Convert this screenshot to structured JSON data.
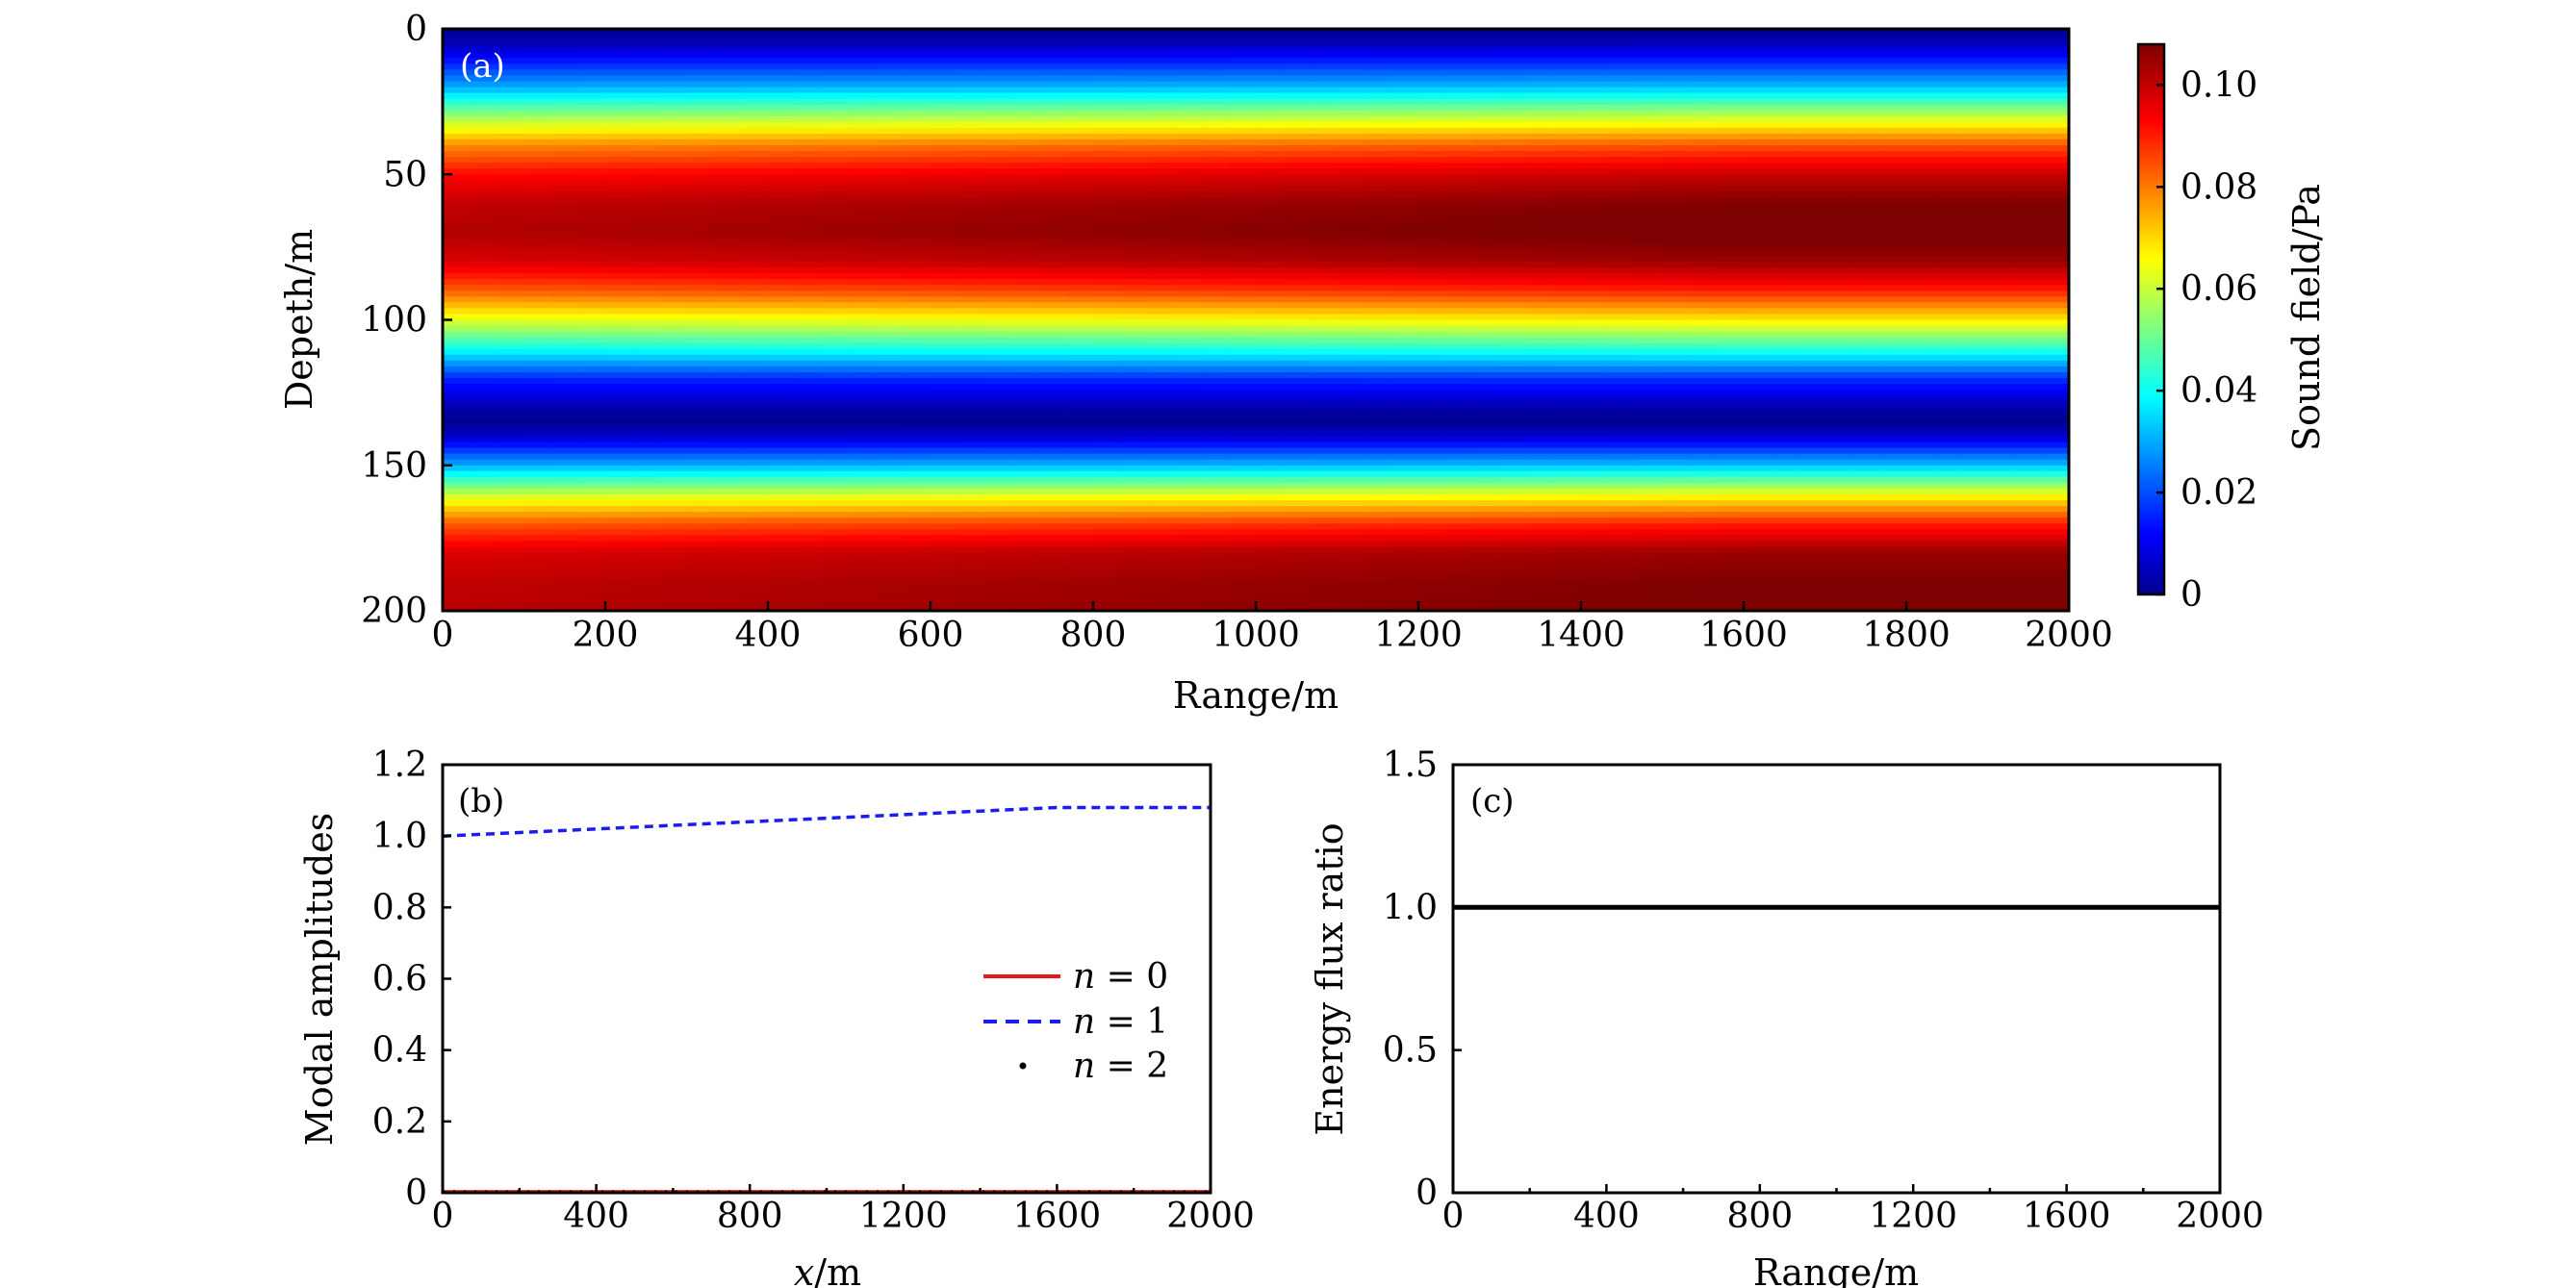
{
  "chart_data": [
    {
      "id": "a",
      "panel_label": "(a)",
      "type": "heatmap",
      "xlabel": "Range/m",
      "ylabel": "Depeth/m",
      "xlim": [
        0,
        2000
      ],
      "ylim": [
        0,
        200
      ],
      "y_inverted": true,
      "xticks": [
        0,
        200,
        400,
        600,
        800,
        1000,
        1200,
        1400,
        1600,
        1800,
        2000
      ],
      "yticks": [
        0,
        50,
        100,
        150,
        200
      ],
      "colorbar": {
        "label": "Sound field/Pa",
        "range": [
          0,
          0.108
        ],
        "ticks": [
          0,
          0.02,
          0.04,
          0.06,
          0.08,
          0.1
        ],
        "tick_labels": [
          "0",
          "0.02",
          "0.04",
          "0.06",
          "0.08",
          "0.10"
        ],
        "colormap": "jet"
      },
      "field_profile": {
        "depth": [
          0,
          5,
          10,
          20,
          30,
          40,
          50,
          60,
          70,
          80,
          90,
          100,
          110,
          120,
          130,
          135,
          140,
          150,
          160,
          170,
          180,
          190,
          200
        ],
        "value_at_range_0": [
          0.0,
          0.004,
          0.012,
          0.03,
          0.055,
          0.078,
          0.092,
          0.1,
          0.102,
          0.097,
          0.083,
          0.063,
          0.04,
          0.016,
          0.003,
          0.0,
          0.006,
          0.03,
          0.06,
          0.083,
          0.097,
          0.1,
          0.101
        ],
        "amplitude_gain_at_range": {
          "range": [
            0,
            1600,
            2000
          ],
          "gain": [
            1.0,
            1.08,
            1.08
          ]
        }
      }
    },
    {
      "id": "b",
      "panel_label": "(b)",
      "type": "line",
      "xlabel": "x/m",
      "ylabel": "Modal amplitudes",
      "xlim": [
        0,
        2000
      ],
      "ylim": [
        0,
        1.2
      ],
      "xticks": [
        0,
        400,
        800,
        1200,
        1600,
        2000
      ],
      "yticks": [
        0,
        0.2,
        0.4,
        0.6,
        0.8,
        1.0,
        1.2
      ],
      "ytick_labels": [
        "0",
        "0.2",
        "0.4",
        "0.6",
        "0.8",
        "1.0",
        "1.2"
      ],
      "legend_position": "center-right",
      "series": [
        {
          "name": "n = 0",
          "math_var": "n",
          "math_val": "0",
          "style": "solid",
          "color": "#e8191b",
          "x": [
            0,
            400,
            800,
            1200,
            1600,
            2000
          ],
          "values": [
            0.003,
            0.003,
            0.003,
            0.003,
            0.003,
            0.003
          ]
        },
        {
          "name": "n = 1",
          "math_var": "n",
          "math_val": "1",
          "style": "dashed",
          "color": "#1c1cf0",
          "x": [
            0,
            200,
            400,
            600,
            800,
            1000,
            1200,
            1400,
            1600,
            1800,
            2000
          ],
          "values": [
            1.0,
            1.01,
            1.02,
            1.03,
            1.04,
            1.05,
            1.06,
            1.07,
            1.08,
            1.08,
            1.08
          ]
        },
        {
          "name": "n = 2",
          "math_var": "n",
          "math_val": "2",
          "style": "dotted",
          "color": "#000000",
          "x": [
            0,
            400,
            800,
            1200,
            1600,
            2000
          ],
          "values": [
            0.002,
            0.002,
            0.002,
            0.002,
            0.002,
            0.002
          ]
        }
      ]
    },
    {
      "id": "c",
      "panel_label": "(c)",
      "type": "line",
      "xlabel": "Range/m",
      "ylabel": "Energy flux ratio",
      "xlim": [
        0,
        2000
      ],
      "ylim": [
        0,
        1.5
      ],
      "xticks": [
        0,
        400,
        800,
        1200,
        1600,
        2000
      ],
      "yticks": [
        0,
        0.5,
        1.0,
        1.5
      ],
      "ytick_labels": [
        "0",
        "0.5",
        "1.0",
        "1.5"
      ],
      "series": [
        {
          "name": "energy flux ratio",
          "style": "solid",
          "color": "#000000",
          "x": [
            0,
            2000
          ],
          "values": [
            1.0,
            1.0
          ]
        }
      ]
    }
  ]
}
